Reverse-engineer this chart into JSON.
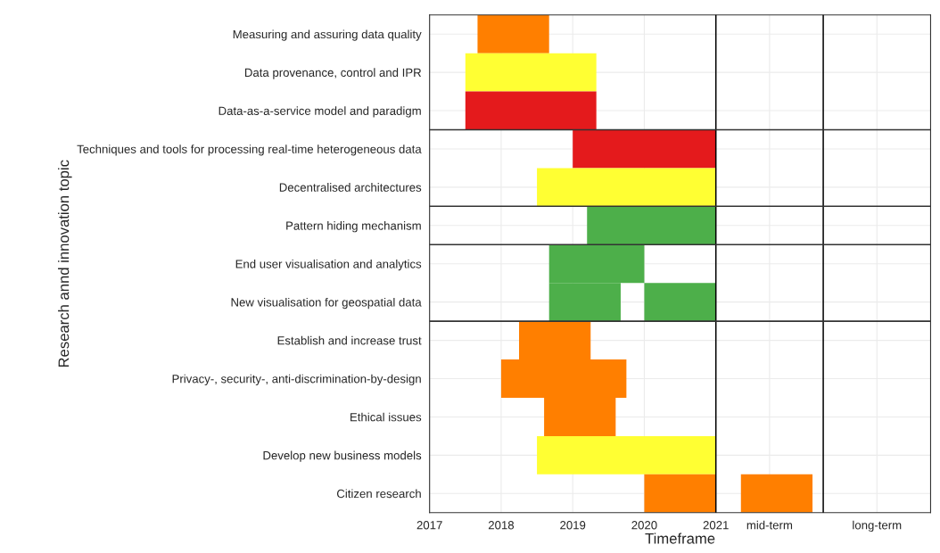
{
  "chart_data": {
    "type": "bar",
    "orientation": "horizontal",
    "xlabel": "Timeframe",
    "ylabel": "Research annd innovation topic",
    "categories": [
      "Measuring and assuring data quality",
      "Data provenance, control and IPR",
      "Data-as-a-service model and paradigm",
      "Techniques and tools for processing real-time heterogeneous data",
      "Decentralised architectures",
      "Pattern hiding mechanism",
      "End user visualisation and analytics",
      "New visualisation for geospatial data",
      "Establish and increase trust",
      "Privacy-, security-, anti-discrimination-by-design",
      "Ethical issues",
      "Develop new business models",
      "Citizen research"
    ],
    "series": [
      {
        "base": [
          2017.67,
          2017.5,
          2017.5,
          2019.0,
          2018.5,
          2019.2,
          2018.67,
          2018.67,
          2018.25,
          2018.0,
          2018.6,
          2018.5,
          2020.0
        ],
        "values": [
          1.0,
          1.83,
          1.83,
          2.0,
          2.5,
          1.8,
          1.33,
          1.0,
          1.0,
          1.75,
          1.0,
          2.5,
          1.0
        ],
        "colors": [
          "#ff7f00",
          "#ffff33",
          "#e41a1c",
          "#e41a1c",
          "#ffff33",
          "#4daf4a",
          "#4daf4a",
          "#4daf4a",
          "#ff7f00",
          "#ff7f00",
          "#ff7f00",
          "#ffff33",
          "#ff7f00"
        ]
      },
      {
        "base": [
          null,
          null,
          null,
          null,
          null,
          null,
          null,
          2020.0,
          null,
          null,
          null,
          null,
          2021.35
        ],
        "values": [
          null,
          null,
          null,
          null,
          null,
          null,
          null,
          1.0,
          null,
          null,
          null,
          null,
          1.0
        ],
        "colors": [
          null,
          null,
          null,
          null,
          null,
          null,
          null,
          "#4daf4a",
          null,
          null,
          null,
          null,
          "#ff7f00"
        ]
      }
    ],
    "xlim": [
      2017,
      2024
    ],
    "xticks": [
      2017,
      2018,
      2019,
      2020,
      2021,
      {
        "value": 2021.75,
        "label": "mid-term"
      },
      {
        "value": 2023.25,
        "label": "long-term"
      }
    ],
    "ref_lines": [
      {
        "axis": "x",
        "value": 2021,
        "color": "#000000"
      },
      {
        "axis": "x",
        "value": 2022.5,
        "color": "#000000"
      }
    ],
    "grid": true,
    "legend": false
  }
}
